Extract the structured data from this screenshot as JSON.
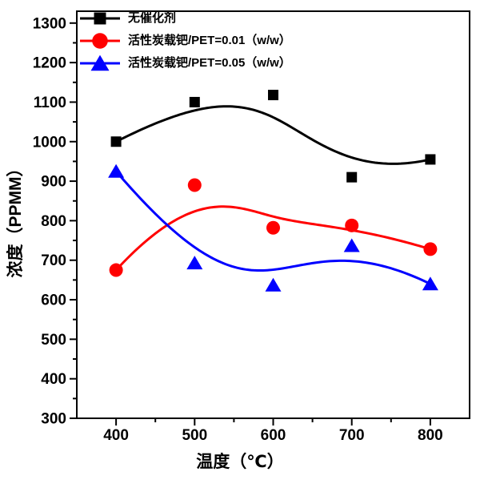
{
  "chart_data": {
    "type": "line",
    "title": "",
    "xlabel": "温度（℃）",
    "ylabel": "浓度（PPMM）",
    "curve_style": "b-spline-smoothed",
    "grid": false,
    "legend_position": "top-left-inside",
    "x": [
      400,
      500,
      600,
      700,
      800
    ],
    "xlim": [
      350,
      850
    ],
    "ylim": [
      300,
      1330
    ],
    "x_major_ticks": [
      400,
      500,
      600,
      700,
      800
    ],
    "x_minor_ticks": [
      450,
      550,
      650,
      750
    ],
    "y_major_ticks": [
      300,
      400,
      500,
      600,
      700,
      800,
      900,
      1000,
      1100,
      1200,
      1300
    ],
    "y_minor_ticks": [
      350,
      450,
      550,
      650,
      750,
      850,
      950,
      1050,
      1150,
      1250
    ],
    "axis_color": "#000000",
    "background_color": "#ffffff",
    "series": [
      {
        "name": "无催化剂",
        "marker": "square",
        "color": "#000000",
        "values": [
          1000,
          1100,
          1118,
          910,
          955
        ]
      },
      {
        "name": "活性炭载钯/PET=0.01（w/w）",
        "marker": "circle",
        "color": "#ff0000",
        "values": [
          675,
          890,
          782,
          788,
          728
        ]
      },
      {
        "name": "活性炭载钯/PET=0.05（w/w）",
        "marker": "triangle",
        "color": "#0000ff",
        "values": [
          925,
          693,
          637,
          737,
          640
        ]
      }
    ]
  }
}
